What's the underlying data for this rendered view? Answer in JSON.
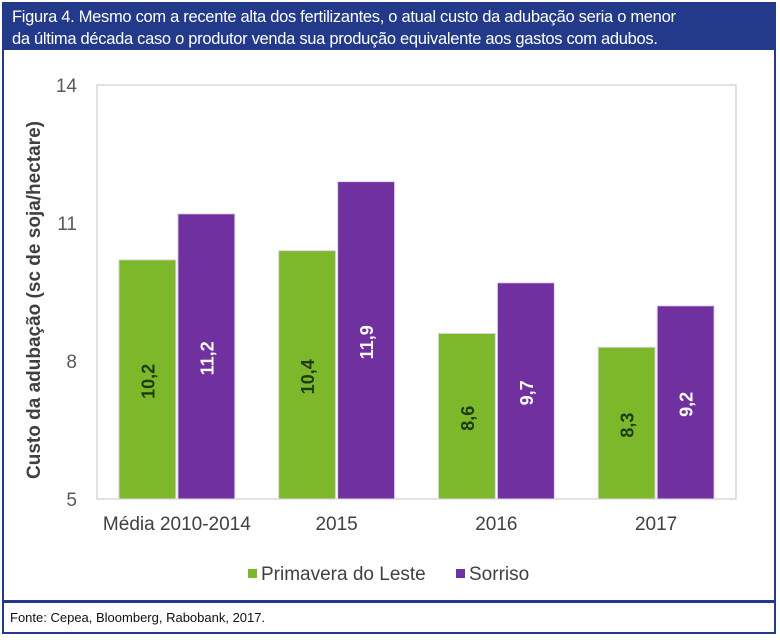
{
  "figure": {
    "title_line1": "Figura 4. Mesmo com a recente alta dos fertilizantes, o atual custo da adubação seria o menor",
    "title_line2": "da última década caso o produtor venda sua produção equivalente aos gastos com adubos.",
    "source": "Fonte: Cepea, Bloomberg, Rabobank, 2017.",
    "colors": {
      "frame": "#233a8a",
      "series1": "#7db72a",
      "series2": "#7030a0"
    }
  },
  "chart_data": {
    "type": "bar",
    "title": "Figura 4. Mesmo com a recente alta dos fertilizantes, o atual custo da adubação seria o menor da última década caso o produtor venda sua produção equivalente aos gastos com adubos.",
    "xlabel": "",
    "ylabel": "Custo da adubação (sc de soja/hectare)",
    "ylim": [
      5,
      14
    ],
    "yticks": [
      5,
      8,
      11,
      14
    ],
    "ytick_labels": [
      "5",
      "8",
      "11",
      "14"
    ],
    "categories": [
      "Média 2010-2014",
      "2015",
      "2016",
      "2017"
    ],
    "series": [
      {
        "name": "Primavera do Leste",
        "color": "#7db72a",
        "label_color": "#1f3a10",
        "values": [
          10.2,
          10.4,
          8.6,
          8.3
        ],
        "labels": [
          "10,2",
          "10,4",
          "8,6",
          "8,3"
        ]
      },
      {
        "name": "Sorriso",
        "color": "#7030a0",
        "label_color": "#ffffff",
        "values": [
          11.2,
          11.9,
          9.7,
          9.2
        ],
        "labels": [
          "11,2",
          "11,9",
          "9,7",
          "9,2"
        ]
      }
    ],
    "grid": false,
    "legend_position": "bottom-center",
    "data_labels": "inside-rotated"
  }
}
